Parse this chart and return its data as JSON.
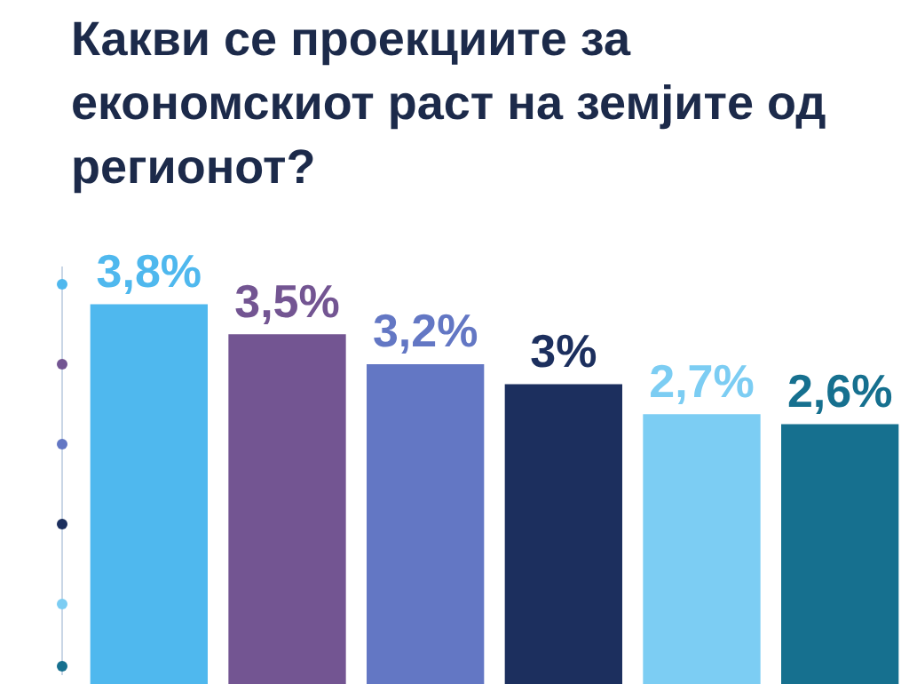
{
  "chart_data": {
    "type": "bar",
    "title": "Какви се проекциите за економскиот раст на земјите од регионот?",
    "categories": [
      null,
      null,
      null,
      null,
      null,
      null
    ],
    "values": [
      3.8,
      3.5,
      3.2,
      3,
      2.7,
      2.6
    ],
    "colors": [
      "#4fb8ee",
      "#735592",
      "#6377c4",
      "#1c2f5e",
      "#7ccdf3",
      "#16708f"
    ],
    "value_labels": [
      "3,8%",
      "3,5%",
      "3,2%",
      "3%",
      "2,7%",
      "2,6%"
    ],
    "grid": false,
    "legend": false
  }
}
